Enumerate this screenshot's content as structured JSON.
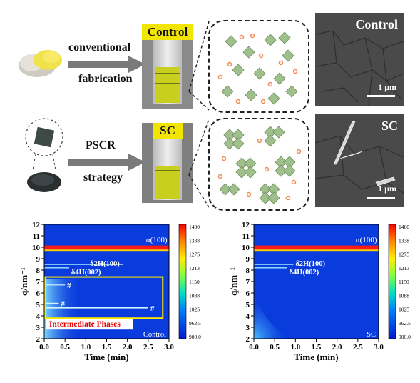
{
  "top_row": {
    "method_label_1": "conventional",
    "method_label_2": "fabrication",
    "vial_tag": "Control",
    "sem_label": "Control",
    "scale_bar": "1 μm"
  },
  "middle_row": {
    "method_label_1": "PSCR",
    "method_label_2": "strategy",
    "vial_tag": "SC",
    "sem_label": "SC",
    "scale_bar": "1 μm"
  },
  "colors": {
    "vial_tag_bg": "#f2e600",
    "solution": "#c8cf1e",
    "perovskite_octahedra": "#9fbf8c",
    "ions": "#f08a50"
  },
  "colorbar_ticks": [
    "1400",
    "1338",
    "1275",
    "1213",
    "1150",
    "1088",
    "1025",
    "962.5",
    "900.0"
  ],
  "chart_data": [
    {
      "type": "heatmap",
      "panel_label": "Control",
      "xlabel": "Time (min)",
      "ylabel": "q/nm⁻¹",
      "xlim": [
        0.0,
        3.0
      ],
      "ylim": [
        2,
        12
      ],
      "x_ticks": [
        "0.0",
        "0.5",
        "1.0",
        "1.5",
        "2.0",
        "2.5",
        "3.0"
      ],
      "y_ticks": [
        "2",
        "3",
        "4",
        "5",
        "6",
        "7",
        "8",
        "9",
        "10",
        "11",
        "12"
      ],
      "colorbar_range": [
        900.0,
        1400
      ],
      "features": [
        {
          "label": "α(100)",
          "q": 10.0
        },
        {
          "label": "δ2H(100)",
          "q": 8.5
        },
        {
          "label": "δ4H(002)",
          "q": 8.2
        },
        {
          "label": "#",
          "q": 6.7
        },
        {
          "label": "#",
          "q": 5.1
        },
        {
          "label": "#",
          "q": 4.7
        }
      ],
      "annotation": "Intermediate Phases"
    },
    {
      "type": "heatmap",
      "panel_label": "SC",
      "xlabel": "Time (min)",
      "ylabel": "q/nm⁻¹",
      "xlim": [
        0.0,
        3.0
      ],
      "ylim": [
        2,
        12
      ],
      "x_ticks": [
        "0.0",
        "0.5",
        "1.0",
        "1.5",
        "2.0",
        "2.5",
        "3.0"
      ],
      "y_ticks": [
        "2",
        "3",
        "4",
        "5",
        "6",
        "7",
        "8",
        "9",
        "10",
        "11",
        "12"
      ],
      "colorbar_range": [
        900.0,
        1400
      ],
      "features": [
        {
          "label": "α(100)",
          "q": 10.0
        },
        {
          "label": "δ2H(100)",
          "q": 8.5
        },
        {
          "label": "δ4H(002)",
          "q": 8.2
        }
      ]
    }
  ]
}
